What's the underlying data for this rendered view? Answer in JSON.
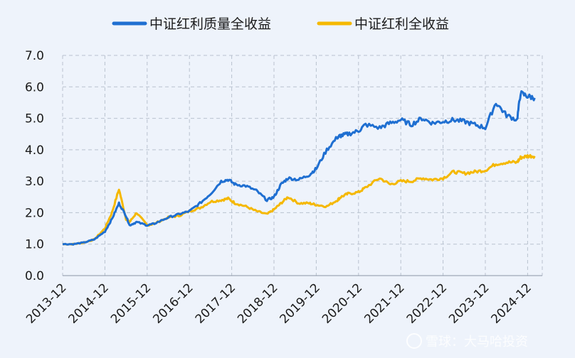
{
  "chart_data": {
    "type": "line",
    "title": "",
    "xlabel": "",
    "ylabel": "",
    "ylim": [
      0,
      7
    ],
    "yticks": [
      "0.0",
      "1.0",
      "2.0",
      "3.0",
      "4.0",
      "5.0",
      "6.0",
      "7.0"
    ],
    "xticks": [
      "2013-12",
      "2014-12",
      "2015-12",
      "2016-12",
      "2017-12",
      "2018-12",
      "2019-12",
      "2020-12",
      "2021-12",
      "2022-12",
      "2023-12",
      "2024-12"
    ],
    "grid": true,
    "legend_position": "top",
    "x": [
      "2013-12",
      "2014-03",
      "2014-06",
      "2014-09",
      "2014-12",
      "2015-02",
      "2015-04",
      "2015-06",
      "2015-07",
      "2015-09",
      "2015-12",
      "2016-02",
      "2016-06",
      "2016-09",
      "2016-12",
      "2017-03",
      "2017-06",
      "2017-09",
      "2017-11",
      "2018-01",
      "2018-04",
      "2018-07",
      "2018-10",
      "2018-12",
      "2019-02",
      "2019-04",
      "2019-07",
      "2019-10",
      "2019-12",
      "2020-03",
      "2020-06",
      "2020-07",
      "2020-09",
      "2020-12",
      "2021-02",
      "2021-06",
      "2021-09",
      "2021-12",
      "2022-03",
      "2022-06",
      "2022-09",
      "2022-12",
      "2023-03",
      "2023-06",
      "2023-09",
      "2023-12",
      "2024-03",
      "2024-06",
      "2024-09",
      "2024-10",
      "2024-12",
      "2025-02"
    ],
    "series": [
      {
        "name": "中证红利质量全收益",
        "color": "#1f6fd1",
        "values": [
          1.0,
          1.0,
          1.05,
          1.15,
          1.4,
          1.8,
          2.3,
          1.9,
          1.6,
          1.7,
          1.6,
          1.65,
          1.85,
          1.95,
          2.05,
          2.3,
          2.6,
          3.0,
          3.05,
          2.9,
          2.85,
          2.7,
          2.4,
          2.5,
          2.9,
          3.1,
          3.05,
          3.2,
          3.4,
          4.0,
          4.4,
          4.45,
          4.5,
          4.6,
          4.8,
          4.7,
          4.85,
          4.95,
          4.8,
          5.0,
          4.85,
          4.9,
          4.95,
          4.9,
          4.8,
          4.7,
          5.5,
          5.1,
          4.95,
          5.8,
          5.7,
          5.65
        ]
      },
      {
        "name": "中证红利全收益",
        "color": "#f5b800",
        "values": [
          1.0,
          1.0,
          1.05,
          1.15,
          1.5,
          2.0,
          2.75,
          1.8,
          1.7,
          2.0,
          1.6,
          1.65,
          1.85,
          1.9,
          2.05,
          2.15,
          2.35,
          2.4,
          2.45,
          2.3,
          2.2,
          2.05,
          1.95,
          2.1,
          2.3,
          2.5,
          2.3,
          2.3,
          2.25,
          2.2,
          2.4,
          2.5,
          2.6,
          2.65,
          2.8,
          3.1,
          2.9,
          3.0,
          3.0,
          3.1,
          3.05,
          3.1,
          3.3,
          3.25,
          3.3,
          3.35,
          3.55,
          3.6,
          3.6,
          3.75,
          3.8,
          3.8
        ]
      }
    ]
  },
  "watermark": {
    "text": "雪球：大马哈投资"
  }
}
